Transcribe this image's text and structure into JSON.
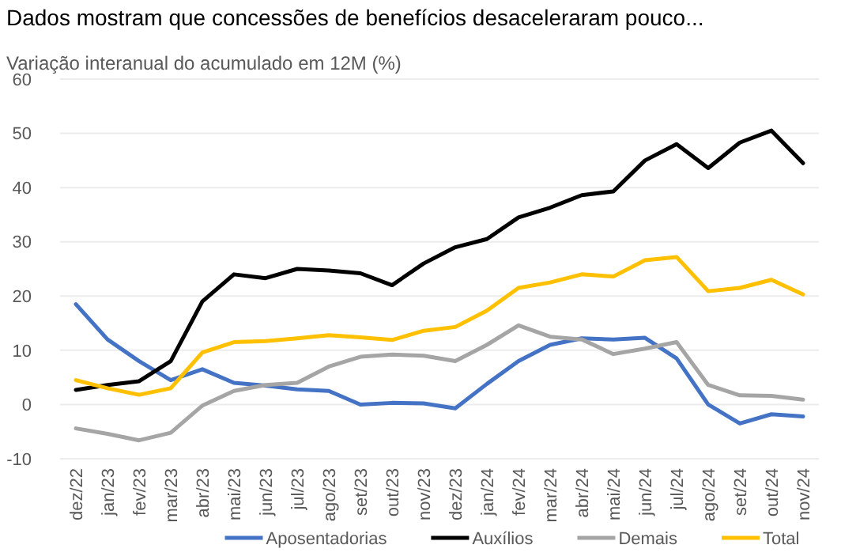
{
  "chart_data": {
    "type": "line",
    "title": "Dados mostram que concessões de benefícios desaceleraram pouco...",
    "subtitle": "Variação interanual do acumulado em 12M (%)",
    "categories": [
      "dez/22",
      "jan/23",
      "fev/23",
      "mar/23",
      "abr/23",
      "mai/23",
      "jun/23",
      "jul/23",
      "ago/23",
      "set/23",
      "out/23",
      "nov/23",
      "dez/23",
      "jan/24",
      "fev/24",
      "mar/24",
      "abr/24",
      "mai/24",
      "jun/24",
      "jul/24",
      "ago/24",
      "set/24",
      "out/24",
      "nov/24"
    ],
    "series": [
      {
        "name": "Aposentadorias",
        "color": "#4472c4",
        "values": [
          18.5,
          12,
          8,
          4.5,
          6.5,
          4,
          3.5,
          2.8,
          2.5,
          0,
          0.3,
          0.2,
          -0.7,
          3.8,
          8,
          11,
          12.2,
          12,
          12.3,
          8.5,
          0,
          -3.5,
          -1.8,
          -2.2
        ]
      },
      {
        "name": "Auxílios",
        "color": "#000000",
        "values": [
          2.7,
          3.6,
          4.3,
          8,
          19,
          24,
          23.3,
          25,
          24.7,
          24.2,
          22,
          26,
          29,
          30.5,
          34.5,
          36.3,
          38.6,
          39.3,
          45,
          48,
          43.6,
          48.3,
          50.5,
          44.5
        ]
      },
      {
        "name": "Demais",
        "color": "#a5a5a5",
        "values": [
          -4.4,
          -5.4,
          -6.6,
          -5.2,
          -0.2,
          2.5,
          3.6,
          4,
          7,
          8.8,
          9.2,
          9,
          8,
          11,
          14.6,
          12.5,
          12,
          9.3,
          10.3,
          11.5,
          3.6,
          1.7,
          1.6,
          0.9
        ]
      },
      {
        "name": "Total",
        "color": "#ffc000",
        "values": [
          4.5,
          3,
          1.8,
          3,
          9.6,
          11.5,
          11.7,
          12.2,
          12.8,
          12.4,
          11.9,
          13.6,
          14.3,
          17.3,
          21.5,
          22.5,
          24,
          23.6,
          26.6,
          27.2,
          20.9,
          21.5,
          23,
          20.3
        ]
      }
    ],
    "ylim": [
      -10,
      60
    ],
    "yticks": [
      -10,
      0,
      10,
      20,
      30,
      40,
      50,
      60
    ],
    "grid": "y",
    "legend": "bottom",
    "line_style": "solid",
    "marker": "none"
  }
}
